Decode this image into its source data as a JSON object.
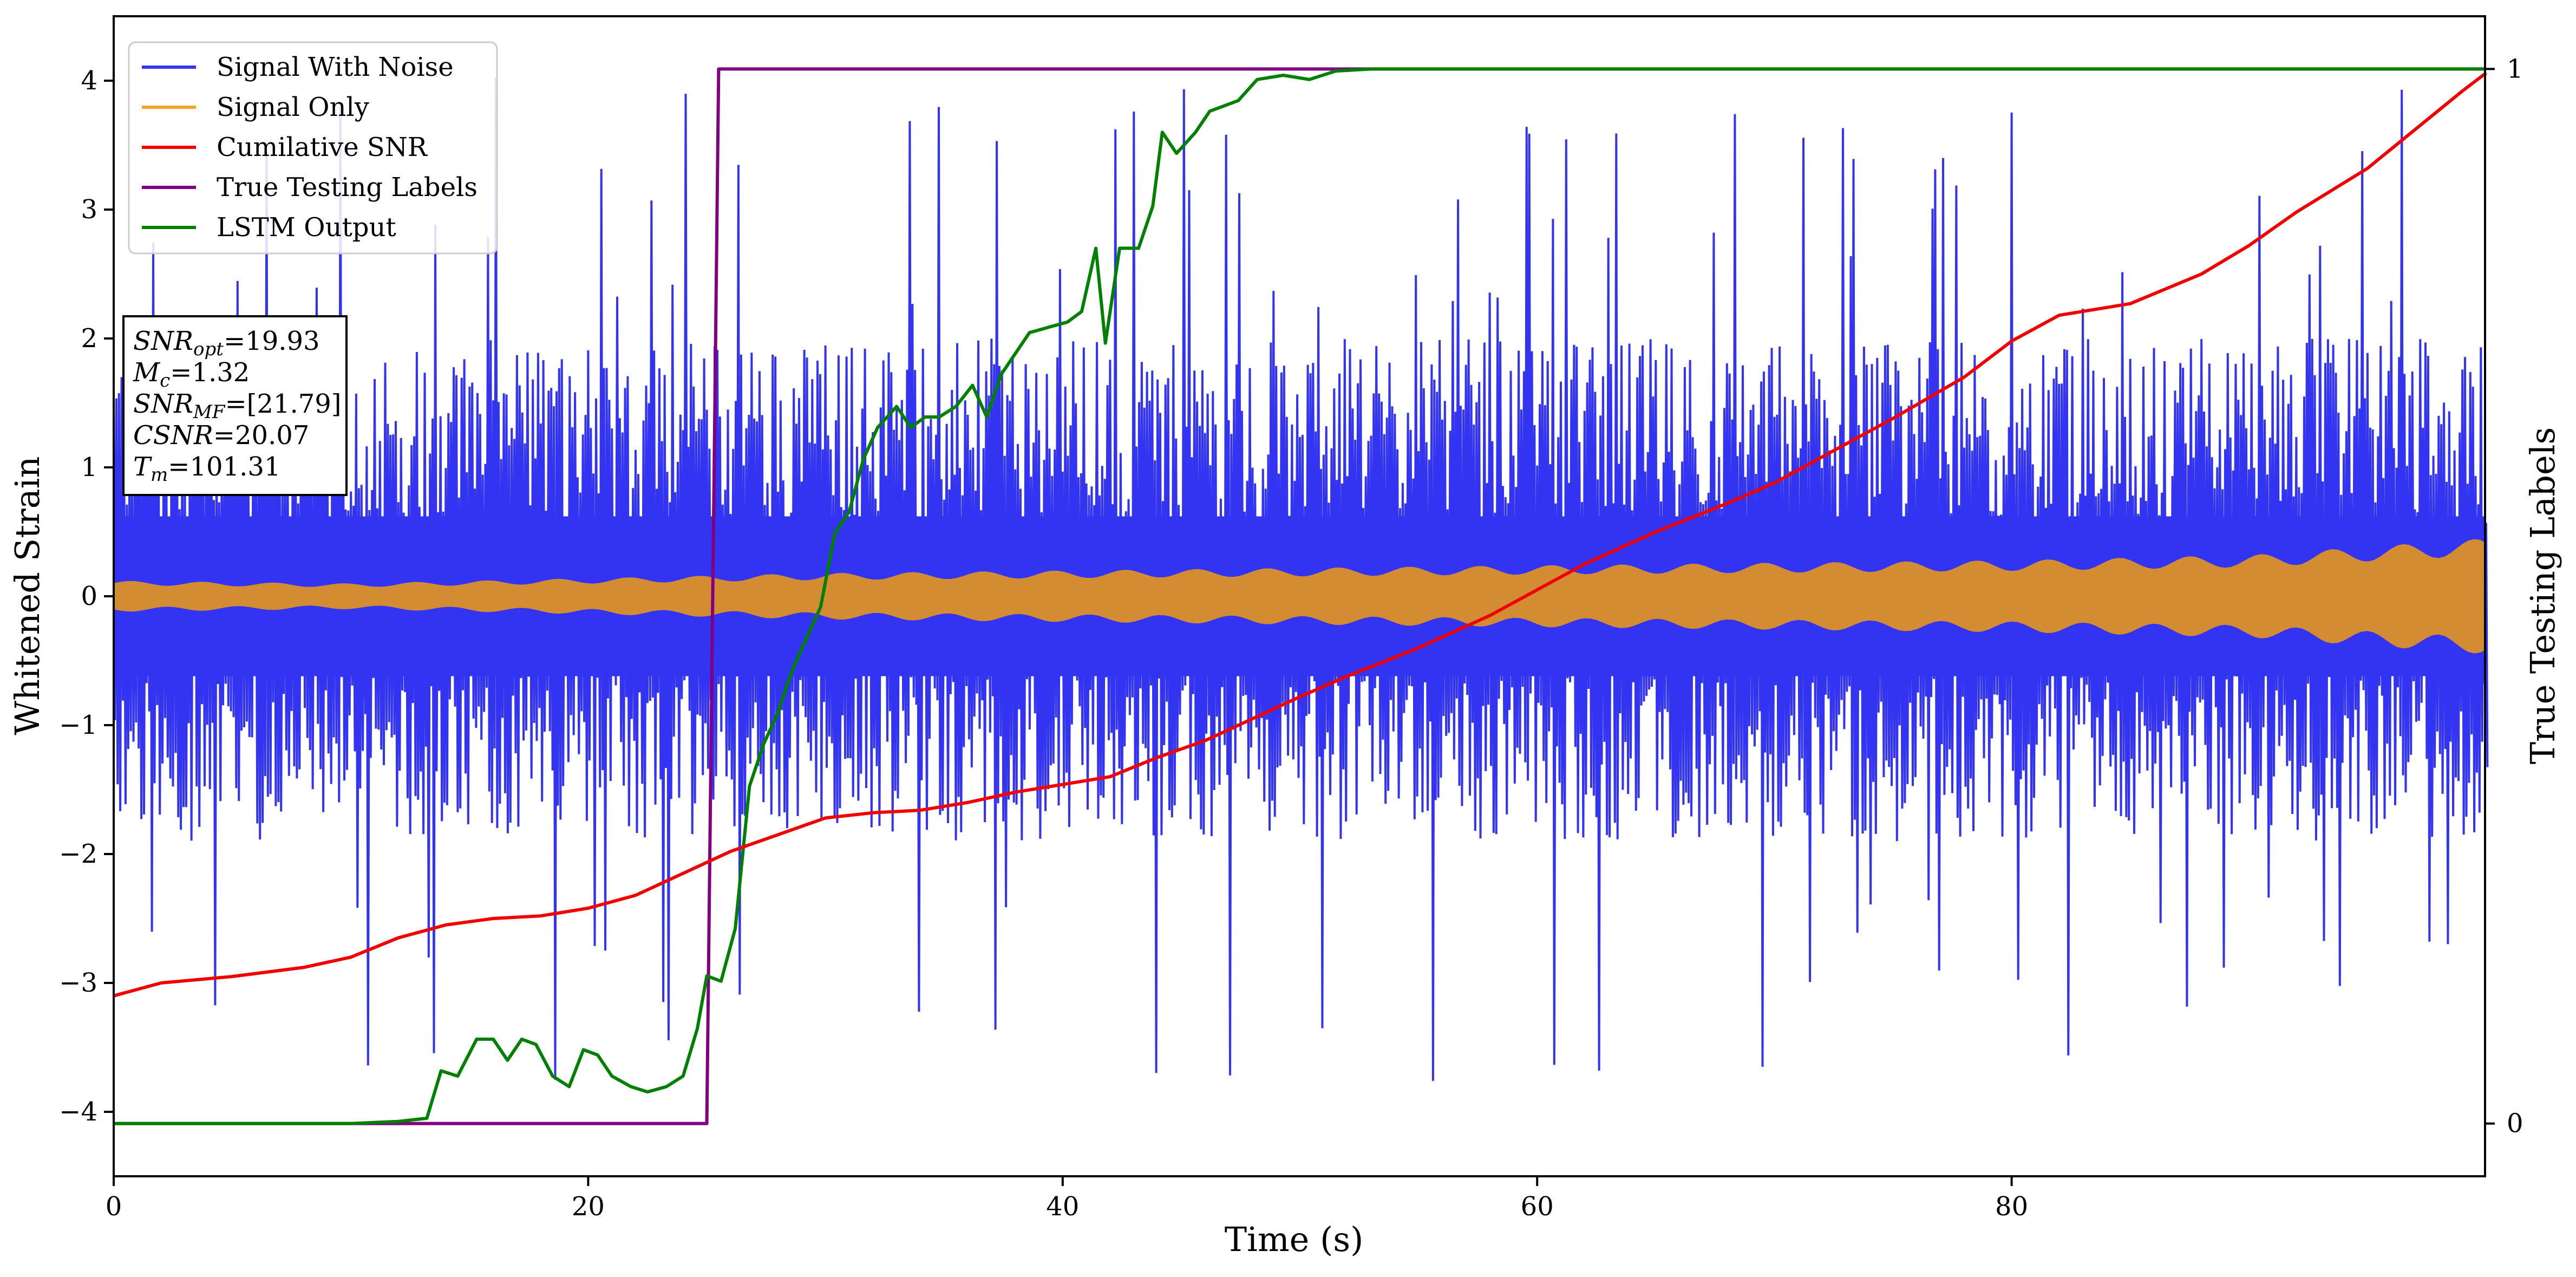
{
  "chart_data": {
    "type": "line",
    "xlabel": "Time (s)",
    "ylabel": "Whitened Strain",
    "ylabel_right": "True Testing Labels",
    "xlim": [
      0,
      100
    ],
    "ylim": [
      -4.5,
      4.5
    ],
    "ylim_right": [
      -0.05,
      1.05
    ],
    "x_ticks": [
      0,
      20,
      40,
      60,
      80
    ],
    "y_ticks": [
      -4,
      -3,
      -2,
      -1,
      0,
      1,
      2,
      3,
      4
    ],
    "y_ticks_right": [
      0,
      1
    ],
    "grid": false,
    "legend_position": "top-left",
    "annotation": {
      "lines": [
        {
          "base": "SNR",
          "sub": "opt",
          "value": "=19.93"
        },
        {
          "base": "M",
          "sub": "c",
          "value": "=1.32"
        },
        {
          "base": "SNR",
          "sub": "MF",
          "value": "=[21.79]"
        },
        {
          "base": "CSNR",
          "sub": "",
          "value": "=20.07"
        },
        {
          "base": "T",
          "sub": "m",
          "value": "=101.31"
        }
      ]
    },
    "series": [
      {
        "name": "Signal With Noise",
        "color": "#3333f2",
        "axis": "left",
        "style": "noise band",
        "lower_envelope_typical": -1.9,
        "upper_envelope_typical": 2.0,
        "spike_max": 4.1,
        "spike_min": -3.8
      },
      {
        "name": "Signal Only",
        "color": "#f5a623",
        "axis": "left",
        "style": "oscillation band",
        "amplitude_points": [
          [
            0,
            0.12
          ],
          [
            10,
            0.1
          ],
          [
            20,
            0.14
          ],
          [
            30,
            0.18
          ],
          [
            40,
            0.2
          ],
          [
            50,
            0.22
          ],
          [
            60,
            0.24
          ],
          [
            70,
            0.26
          ],
          [
            80,
            0.28
          ],
          [
            90,
            0.32
          ],
          [
            100,
            0.45
          ]
        ]
      },
      {
        "name": "Cumilative SNR",
        "color": "#f20000",
        "axis": "left",
        "points": [
          [
            0,
            -3.1
          ],
          [
            2,
            -3.0
          ],
          [
            5,
            -2.95
          ],
          [
            8,
            -2.88
          ],
          [
            10,
            -2.8
          ],
          [
            12,
            -2.65
          ],
          [
            14,
            -2.55
          ],
          [
            16,
            -2.5
          ],
          [
            18,
            -2.48
          ],
          [
            20,
            -2.42
          ],
          [
            22,
            -2.32
          ],
          [
            24,
            -2.15
          ],
          [
            26,
            -1.98
          ],
          [
            28,
            -1.85
          ],
          [
            30,
            -1.72
          ],
          [
            32,
            -1.68
          ],
          [
            34,
            -1.66
          ],
          [
            36,
            -1.6
          ],
          [
            38,
            -1.52
          ],
          [
            40,
            -1.46
          ],
          [
            42,
            -1.4
          ],
          [
            44,
            -1.25
          ],
          [
            46,
            -1.12
          ],
          [
            48,
            -0.95
          ],
          [
            50,
            -0.78
          ],
          [
            52,
            -0.62
          ],
          [
            55,
            -0.4
          ],
          [
            58,
            -0.15
          ],
          [
            60,
            0.05
          ],
          [
            62,
            0.25
          ],
          [
            65,
            0.5
          ],
          [
            68,
            0.72
          ],
          [
            70,
            0.88
          ],
          [
            72,
            1.08
          ],
          [
            75,
            1.38
          ],
          [
            78,
            1.7
          ],
          [
            80,
            1.98
          ],
          [
            82,
            2.18
          ],
          [
            85,
            2.27
          ],
          [
            88,
            2.5
          ],
          [
            90,
            2.72
          ],
          [
            92,
            2.98
          ],
          [
            95,
            3.32
          ],
          [
            97,
            3.62
          ],
          [
            99,
            3.92
          ],
          [
            100,
            4.06
          ]
        ]
      },
      {
        "name": "True Testing Labels",
        "color": "#800080",
        "axis": "right",
        "points": [
          [
            0,
            0
          ],
          [
            25,
            0
          ],
          [
            25.5,
            1
          ],
          [
            100,
            1
          ]
        ]
      },
      {
        "name": "LSTM Output",
        "color": "#008000",
        "axis": "right",
        "points": [
          [
            0,
            0
          ],
          [
            10,
            0
          ],
          [
            12,
            0.002
          ],
          [
            13.2,
            0.005
          ],
          [
            13.8,
            0.05
          ],
          [
            14.5,
            0.045
          ],
          [
            15.3,
            0.08
          ],
          [
            16,
            0.08
          ],
          [
            16.6,
            0.06
          ],
          [
            17.2,
            0.08
          ],
          [
            17.8,
            0.075
          ],
          [
            18.5,
            0.045
          ],
          [
            19.2,
            0.035
          ],
          [
            19.8,
            0.07
          ],
          [
            20.4,
            0.065
          ],
          [
            21,
            0.045
          ],
          [
            21.8,
            0.035
          ],
          [
            22.5,
            0.03
          ],
          [
            23.3,
            0.035
          ],
          [
            24,
            0.045
          ],
          [
            24.6,
            0.09
          ],
          [
            25,
            0.14
          ],
          [
            25.6,
            0.135
          ],
          [
            26.2,
            0.185
          ],
          [
            26.8,
            0.32
          ],
          [
            27.4,
            0.36
          ],
          [
            28,
            0.39
          ],
          [
            28.6,
            0.43
          ],
          [
            29.2,
            0.46
          ],
          [
            29.8,
            0.49
          ],
          [
            30.4,
            0.56
          ],
          [
            31,
            0.58
          ],
          [
            31.6,
            0.63
          ],
          [
            32.2,
            0.66
          ],
          [
            33,
            0.68
          ],
          [
            33.6,
            0.66
          ],
          [
            34.2,
            0.67
          ],
          [
            34.8,
            0.67
          ],
          [
            35.5,
            0.68
          ],
          [
            36.2,
            0.7
          ],
          [
            36.8,
            0.67
          ],
          [
            37.4,
            0.71
          ],
          [
            38,
            0.73
          ],
          [
            38.6,
            0.75
          ],
          [
            39.4,
            0.755
          ],
          [
            40.2,
            0.76
          ],
          [
            40.8,
            0.77
          ],
          [
            41.4,
            0.83
          ],
          [
            41.8,
            0.74
          ],
          [
            42.4,
            0.83
          ],
          [
            43.2,
            0.83
          ],
          [
            43.8,
            0.87
          ],
          [
            44.2,
            0.94
          ],
          [
            44.8,
            0.92
          ],
          [
            45.6,
            0.94
          ],
          [
            46.2,
            0.96
          ],
          [
            47.4,
            0.97
          ],
          [
            48.2,
            0.99
          ],
          [
            49.3,
            0.994
          ],
          [
            50.4,
            0.99
          ],
          [
            51.5,
            0.998
          ],
          [
            53,
            1
          ],
          [
            100,
            1
          ]
        ]
      }
    ]
  }
}
